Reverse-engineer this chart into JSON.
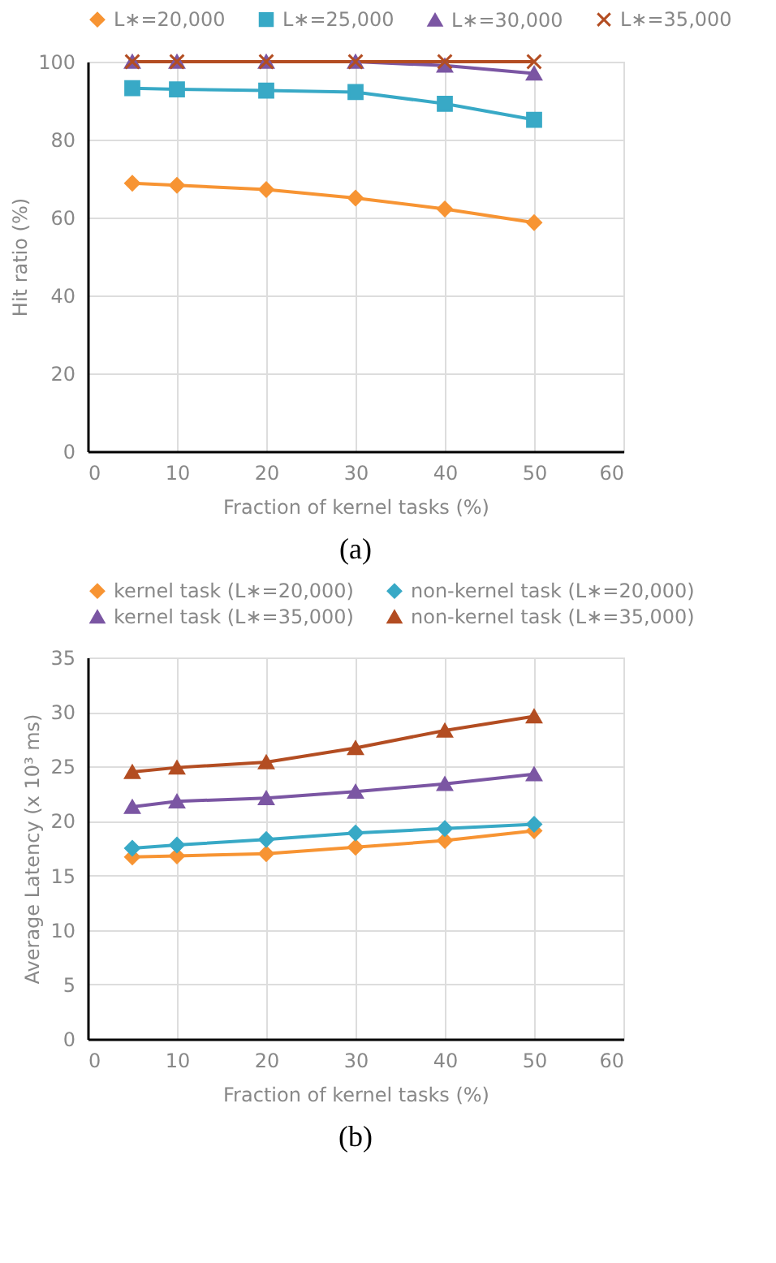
{
  "chart_data": [
    {
      "type": "line",
      "title": "(a)",
      "xlabel": "Fraction of kernel tasks (%)",
      "ylabel": "Hit ratio (%)",
      "x": [
        5,
        10,
        20,
        30,
        40,
        50
      ],
      "xlim": [
        0,
        60
      ],
      "xticks": [
        0,
        10,
        20,
        30,
        40,
        50,
        60
      ],
      "ylim": [
        0,
        100
      ],
      "yticks": [
        0,
        20,
        40,
        60,
        80,
        100
      ],
      "grid": true,
      "legend": "top",
      "line_style": "solid",
      "series": [
        {
          "name": "L∗=20,000",
          "color": "#f79433",
          "marker": "diamond",
          "values": [
            68.8,
            68.3,
            67.2,
            65.0,
            62.2,
            58.7
          ]
        },
        {
          "name": "L∗=25,000",
          "color": "#38a9c6",
          "marker": "square",
          "values": [
            93.2,
            92.9,
            92.6,
            92.2,
            89.2,
            85.1
          ]
        },
        {
          "name": "L∗=30,000",
          "color": "#7b56a3",
          "marker": "triangle",
          "values": [
            100,
            100,
            100,
            100,
            99,
            97
          ]
        },
        {
          "name": "L∗=35,000",
          "color": "#b34d22",
          "marker": "cross",
          "values": [
            100,
            100,
            100,
            100,
            100,
            100
          ]
        }
      ]
    },
    {
      "type": "line",
      "title": "(b)",
      "xlabel": "Fraction of kernel tasks (%)",
      "ylabel": "Average Latency  (x 10³ ms)",
      "x": [
        5,
        10,
        20,
        30,
        40,
        50
      ],
      "xlim": [
        0,
        60
      ],
      "xticks": [
        0,
        10,
        20,
        30,
        40,
        50,
        60
      ],
      "ylim": [
        0,
        35
      ],
      "yticks": [
        0,
        5,
        10,
        15,
        20,
        25,
        30,
        35
      ],
      "grid": true,
      "legend": "top",
      "line_style": "solid",
      "series": [
        {
          "name": "kernel task (L∗=20,000)",
          "color": "#f79433",
          "marker": "diamond",
          "values": [
            16.7,
            16.8,
            17.0,
            17.6,
            18.2,
            19.1
          ]
        },
        {
          "name": "non-kernel task (L∗=20,000)",
          "color": "#38a9c6",
          "marker": "diamond",
          "values": [
            17.5,
            17.8,
            18.3,
            18.9,
            19.3,
            19.7
          ]
        },
        {
          "name": "kernel task (L∗=35,000)",
          "color": "#7b56a3",
          "marker": "triangle",
          "values": [
            21.3,
            21.8,
            22.1,
            22.7,
            23.4,
            24.3
          ]
        },
        {
          "name": "non-kernel task (L∗=35,000)",
          "color": "#b34d22",
          "marker": "triangle",
          "values": [
            24.5,
            24.9,
            25.4,
            26.7,
            28.3,
            29.6
          ]
        }
      ]
    }
  ]
}
